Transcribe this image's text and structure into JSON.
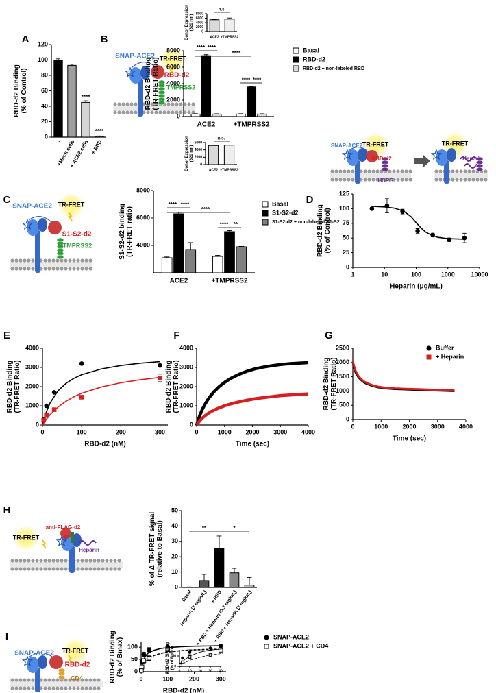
{
  "chart_data": [
    {
      "type": "bar",
      "panel": "A",
      "ylabel": [
        "RBD-d2 Binding",
        "(% of Control)"
      ],
      "categories": [
        "-",
        "+Mock cells",
        "+ ACE2 cells",
        "+ RBD"
      ],
      "values": [
        100,
        93,
        45,
        1
      ],
      "errors": [
        1.5,
        1.5,
        2,
        0.5
      ],
      "colors": [
        "#000000",
        "#9e9e9e",
        "#d4d4d4",
        "#ffffff"
      ],
      "ylim": [
        0,
        120
      ],
      "yticks": [
        0,
        20,
        40,
        60,
        80,
        100,
        120
      ],
      "annotations": [
        "****",
        "****"
      ]
    },
    {
      "type": "bar",
      "panel": "B",
      "ylabel": [
        "RBD-d2 Binding",
        "(TR-FRET Ratio)"
      ],
      "categories": [
        "ACE2",
        "+TMPRSS2"
      ],
      "series": [
        {
          "name": "Basal",
          "color": "#ffffff",
          "values": [
            300,
            300
          ],
          "errors": [
            50,
            50
          ]
        },
        {
          "name": "RBD-d2",
          "color": "#000000",
          "values": [
            7400,
            3600
          ],
          "errors": [
            120,
            60
          ]
        },
        {
          "name": "RBD-d2 + non-labeled RBD",
          "color": "#d9d9d9",
          "values": [
            300,
            300
          ],
          "errors": [
            40,
            40
          ]
        }
      ],
      "ylim": [
        0,
        8000
      ],
      "yticks": [
        0,
        2000,
        4000,
        6000,
        8000
      ],
      "legend": "right",
      "annotations": [
        "****",
        "****",
        "****",
        "****",
        "****"
      ],
      "labels": [
        "SNAP-ACE2",
        "TR-FRET",
        "RBD-d2",
        "TMPRSS2"
      ],
      "inset": {
        "type": "bar",
        "ylabel": [
          "Donor Expression",
          "(620 nm)"
        ],
        "categories": [
          "ACE2",
          "+TMPRSS2"
        ],
        "values": [
          5300,
          5600
        ],
        "errors": [
          200,
          500
        ],
        "colors": [
          "#d9d9d9",
          "#eeeeee"
        ],
        "ylim": [
          0,
          8000
        ],
        "yticks": [
          0,
          2000,
          4000,
          6000,
          8000
        ],
        "annotations": [
          "n.s."
        ]
      }
    },
    {
      "type": "bar",
      "panel": "C",
      "ylabel": [
        "S1-S2-d2 binding",
        "(TR-FRET ratio)"
      ],
      "categories": [
        "ACE2",
        "+TMPRSS2"
      ],
      "series": [
        {
          "name": "Basal",
          "color": "#ffffff",
          "values": [
            3100,
            3200
          ],
          "errors": [
            60,
            80
          ]
        },
        {
          "name": "S1-S2-d2",
          "color": "#000000",
          "values": [
            6300,
            5000
          ],
          "errors": [
            100,
            80
          ]
        },
        {
          "name": "S1-S2-d2 + non-labeled S1-S2",
          "color": "#808080",
          "values": [
            3700,
            3900
          ],
          "errors": [
            500,
            30
          ]
        }
      ],
      "ylim": [
        2000,
        8000
      ],
      "yticks": [
        4000,
        6000,
        8000
      ],
      "legend": "right",
      "annotations": [
        "****",
        "****",
        "****",
        "****",
        "**"
      ],
      "labels": [
        "SNAP-ACE2",
        "TR-FRET",
        "S1-S2-d2",
        "TMPRSS2"
      ],
      "inset": {
        "type": "bar",
        "ylabel": [
          "Donor Expression",
          "(620 nm)"
        ],
        "categories": [
          "ACE2",
          "+TMPRSS2"
        ],
        "values": [
          5200,
          5300
        ],
        "errors": [
          150,
          60
        ],
        "colors": [
          "#d9d9d9",
          "#eeeeee"
        ],
        "ylim": [
          0,
          6000
        ],
        "yticks": [
          0,
          2000,
          4000,
          6000
        ],
        "annotations": [
          "n.s."
        ]
      }
    },
    {
      "type": "scatter",
      "panel": "D",
      "ylabel": [
        "RBD-d2 Binding",
        "(% of Control)"
      ],
      "xlabel": "Heparin (μg/mL)",
      "xlog": true,
      "x": [
        4,
        12,
        37,
        111,
        333,
        1111,
        3333
      ],
      "series": [
        {
          "color": "#000000",
          "marker": "circle",
          "values": [
            100,
            105,
            95,
            62,
            55,
            47,
            50
          ],
          "errors": [
            2,
            12,
            4,
            4,
            3,
            3,
            8
          ],
          "fit": {
            "x": [
              4,
              10,
              20,
              40,
              70,
              100,
              150,
              200,
              300,
              500,
              1000,
              3333
            ],
            "y": [
              104,
              103,
              101,
              96,
              86,
              76,
              66,
              60,
              55,
              51,
              49,
              48
            ]
          }
        }
      ],
      "xlim": [
        1,
        10000
      ],
      "xticks": [
        1,
        10,
        100,
        1000,
        10000
      ],
      "ylim": [
        0,
        125
      ],
      "yticks": [
        0,
        25,
        50,
        75,
        100,
        125
      ],
      "labels": [
        "SNAP-ACE2",
        "TR-FRET",
        "RBD-d2",
        "HSPG",
        "TR-FRET",
        "Heparin"
      ]
    },
    {
      "type": "scatter",
      "panel": "E",
      "ylabel": [
        "RBD-d2 Binding",
        "(TR-FRET Ratio)"
      ],
      "xlabel": "RBD-d2 (nM)",
      "x": [
        3,
        10,
        30,
        100,
        300
      ],
      "series": [
        {
          "color": "#000000",
          "marker": "circle",
          "values": [
            300,
            1000,
            1700,
            3200,
            3100
          ],
          "errors": [
            30,
            40,
            50,
            60,
            80
          ],
          "fit": {
            "x": [
              0,
              10,
              20,
              40,
              60,
              80,
              100,
              150,
              200,
              250,
              300
            ],
            "y": [
              0,
              690,
              1170,
              1790,
              2170,
              2430,
              2620,
              2920,
              3100,
              3220,
              3300
            ]
          }
        },
        {
          "color": "#d62020",
          "marker": "square",
          "values": [
            250,
            500,
            800,
            1450,
            2450
          ],
          "errors": [
            30,
            40,
            50,
            60,
            200
          ],
          "fit": {
            "x": [
              0,
              10,
              20,
              40,
              60,
              80,
              100,
              150,
              200,
              250,
              300
            ],
            "y": [
              0,
              300,
              550,
              940,
              1240,
              1470,
              1650,
              1980,
              2200,
              2360,
              2480
            ]
          }
        }
      ],
      "xlim": [
        0,
        320
      ],
      "xticks": [
        0,
        100,
        200,
        300
      ],
      "ylim": [
        0,
        4000
      ],
      "yticks": [
        0,
        1000,
        2000,
        3000,
        4000
      ]
    },
    {
      "type": "line",
      "panel": "F",
      "ylabel": [
        "RBD-d2 Binding",
        "(TR-FRET Ratio)"
      ],
      "xlabel": "Time (sec)",
      "x": [
        0,
        100,
        200,
        300,
        400,
        500,
        600,
        800,
        1000,
        1200,
        1500,
        1800,
        2100,
        2400,
        2700,
        3000,
        3300,
        3600,
        4000
      ],
      "series": [
        {
          "color": "#000000",
          "values": [
            0,
            450,
            800,
            1080,
            1320,
            1520,
            1700,
            1990,
            2220,
            2410,
            2630,
            2800,
            2930,
            3020,
            3090,
            3150,
            3190,
            3220,
            3250
          ]
        },
        {
          "color": "#d62020",
          "values": [
            0,
            200,
            360,
            480,
            590,
            680,
            760,
            890,
            1000,
            1090,
            1200,
            1290,
            1370,
            1430,
            1480,
            1530,
            1560,
            1590,
            1620
          ]
        }
      ],
      "xlim": [
        0,
        4000
      ],
      "xticks": [
        0,
        1000,
        2000,
        3000,
        4000
      ],
      "ylim": [
        0,
        4000
      ],
      "yticks": [
        0,
        1000,
        2000,
        3000,
        4000
      ]
    },
    {
      "type": "line",
      "panel": "G",
      "ylabel": [
        "RBD-d2 Binding",
        "(TR-FRET Ratio)"
      ],
      "xlabel": "Time (sec)",
      "x": [
        0,
        50,
        100,
        200,
        300,
        400,
        500,
        700,
        900,
        1200,
        1500,
        1800,
        2100,
        2400,
        2700,
        3000,
        3300,
        3600
      ],
      "series": [
        {
          "name": "Buffer",
          "color": "#000000",
          "marker": "circle",
          "values": [
            2000,
            1800,
            1650,
            1480,
            1380,
            1300,
            1250,
            1180,
            1130,
            1090,
            1070,
            1060,
            1050,
            1040,
            1030,
            1020,
            1010,
            1000
          ]
        },
        {
          "name": "+ Heparin",
          "color": "#d62020",
          "marker": "square",
          "values": [
            2050,
            1850,
            1700,
            1520,
            1410,
            1330,
            1280,
            1200,
            1150,
            1110,
            1090,
            1080,
            1070,
            1060,
            1050,
            1040,
            1030,
            1030
          ]
        }
      ],
      "xlim": [
        0,
        4000
      ],
      "xticks": [
        0,
        1000,
        2000,
        3000,
        4000
      ],
      "ylim": [
        0,
        2500
      ],
      "yticks": [
        0,
        500,
        1000,
        1500,
        2000,
        2500
      ],
      "legend": "top-right"
    },
    {
      "type": "bar",
      "panel": "H",
      "ylabel": [
        "% of Δ TR-FRET signal",
        "(relative to Basal)"
      ],
      "categories": [
        "Basal",
        "Heparin (3 mg/mL)",
        "+ RBD",
        "+ RBD + Heparin (0.3 mg/mL)",
        "+ RBD + Heparin (3 mg/mL)"
      ],
      "values": [
        0,
        4.5,
        25.5,
        9.5,
        1.5
      ],
      "errors": [
        0.3,
        4,
        8,
        3,
        5
      ],
      "colors": [
        "#ffffff",
        "#555555",
        "#000000",
        "#888888",
        "#bbbbbb"
      ],
      "ylim": [
        0,
        50
      ],
      "yticks": [
        0,
        10,
        20,
        30,
        40,
        50
      ],
      "annotations": [
        "**",
        "*"
      ],
      "labels": [
        "TR-FRET",
        "anti-FLAG-d2",
        "Heparin"
      ]
    },
    {
      "type": "scatter",
      "panel": "I",
      "ylabel": [
        "RBD-d2 Binding",
        "(% of Bmax)"
      ],
      "xlabel": "RBD-d2 (nM)",
      "x": [
        1,
        3,
        10,
        30,
        100,
        300
      ],
      "series": [
        {
          "name": "SNAP-ACE2",
          "color": "#000000",
          "marker": "circle",
          "filled": true,
          "linestyle": "solid",
          "values": [
            10,
            40,
            70,
            88,
            102,
            105
          ],
          "errors": [
            3,
            5,
            10,
            10,
            4,
            4
          ],
          "fit": {
            "x": [
              0,
              5,
              10,
              20,
              30,
              50,
              75,
              100,
              150,
              200,
              250,
              300
            ],
            "y": [
              0,
              32,
              50,
              69,
              79,
              88,
              95,
              98,
              102,
              104,
              105,
              106
            ]
          }
        },
        {
          "name": "SNAP-ACE2 + CD4",
          "color": "#000000",
          "marker": "square",
          "filled": false,
          "linestyle": "dashed",
          "values": [
            5,
            20,
            45,
            55,
            90,
            88
          ],
          "errors": [
            2,
            5,
            8,
            10,
            4,
            6
          ],
          "fit": {
            "x": [
              0,
              5,
              10,
              20,
              30,
              50,
              75,
              100,
              150,
              200,
              250,
              300
            ],
            "y": [
              0,
              17,
              29,
              44,
              55,
              67,
              75,
              80,
              86,
              89,
              91,
              92
            ]
          }
        }
      ],
      "xlim": [
        0,
        320
      ],
      "xticks": [
        0,
        100,
        200,
        300
      ],
      "ylim": [
        0,
        120
      ],
      "yticks": [
        0,
        50,
        100
      ],
      "legend": "right",
      "labels": [
        "SNAP-ACE2",
        "TR-FRET",
        "RBD-d2",
        "CD4"
      ],
      "inset": {
        "ylabel": [
          "RBD-d2 Binding",
          "(% of Bmax)"
        ],
        "xlim": [
          0,
          40
        ],
        "xticks": [
          0,
          10,
          20,
          30,
          40
        ],
        "ylim": [
          0,
          80
        ],
        "yticks": [
          0,
          50
        ]
      }
    }
  ]
}
